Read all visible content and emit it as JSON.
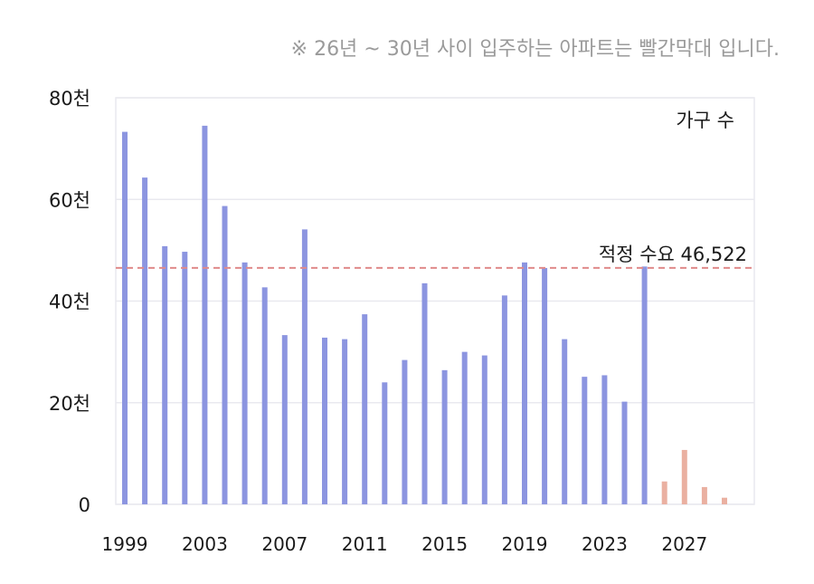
{
  "note": "※ 26년 ~ 30년 사이 입주하는 아파트는 빨간막대 입니다.",
  "colors": {
    "past": "#8c95e0",
    "future": "#eab0a1",
    "reference": "#e08a8a",
    "grid": "#e9e9ef"
  },
  "chart_data": {
    "type": "bar",
    "series_label": "가구 수",
    "x": [
      1999,
      2000,
      2001,
      2002,
      2003,
      2004,
      2005,
      2006,
      2007,
      2008,
      2009,
      2010,
      2011,
      2012,
      2013,
      2014,
      2015,
      2016,
      2017,
      2018,
      2019,
      2020,
      2021,
      2022,
      2023,
      2024,
      2025,
      2026,
      2027,
      2028,
      2029
    ],
    "values": [
      73300,
      64300,
      50800,
      49700,
      74500,
      58700,
      47600,
      42700,
      33300,
      54100,
      32800,
      32500,
      37400,
      24000,
      28400,
      43500,
      26400,
      30000,
      29300,
      41100,
      47600,
      46500,
      32500,
      25100,
      25400,
      20200,
      46800,
      4500,
      10700,
      3400,
      1300
    ],
    "future_from": 2026,
    "x_ticks": [
      1999,
      2003,
      2007,
      2011,
      2015,
      2019,
      2023,
      2027
    ],
    "y_ticks": [
      {
        "value": 0,
        "label": "0"
      },
      {
        "value": 20000,
        "label": "20천"
      },
      {
        "value": 40000,
        "label": "40천"
      },
      {
        "value": 60000,
        "label": "60천"
      },
      {
        "value": 80000,
        "label": "80천"
      }
    ],
    "ylim": [
      0,
      80000
    ],
    "grid": true,
    "legend_position": "top-right",
    "reference_line": {
      "value": 46522,
      "label": "적정 수요 46,522"
    }
  }
}
